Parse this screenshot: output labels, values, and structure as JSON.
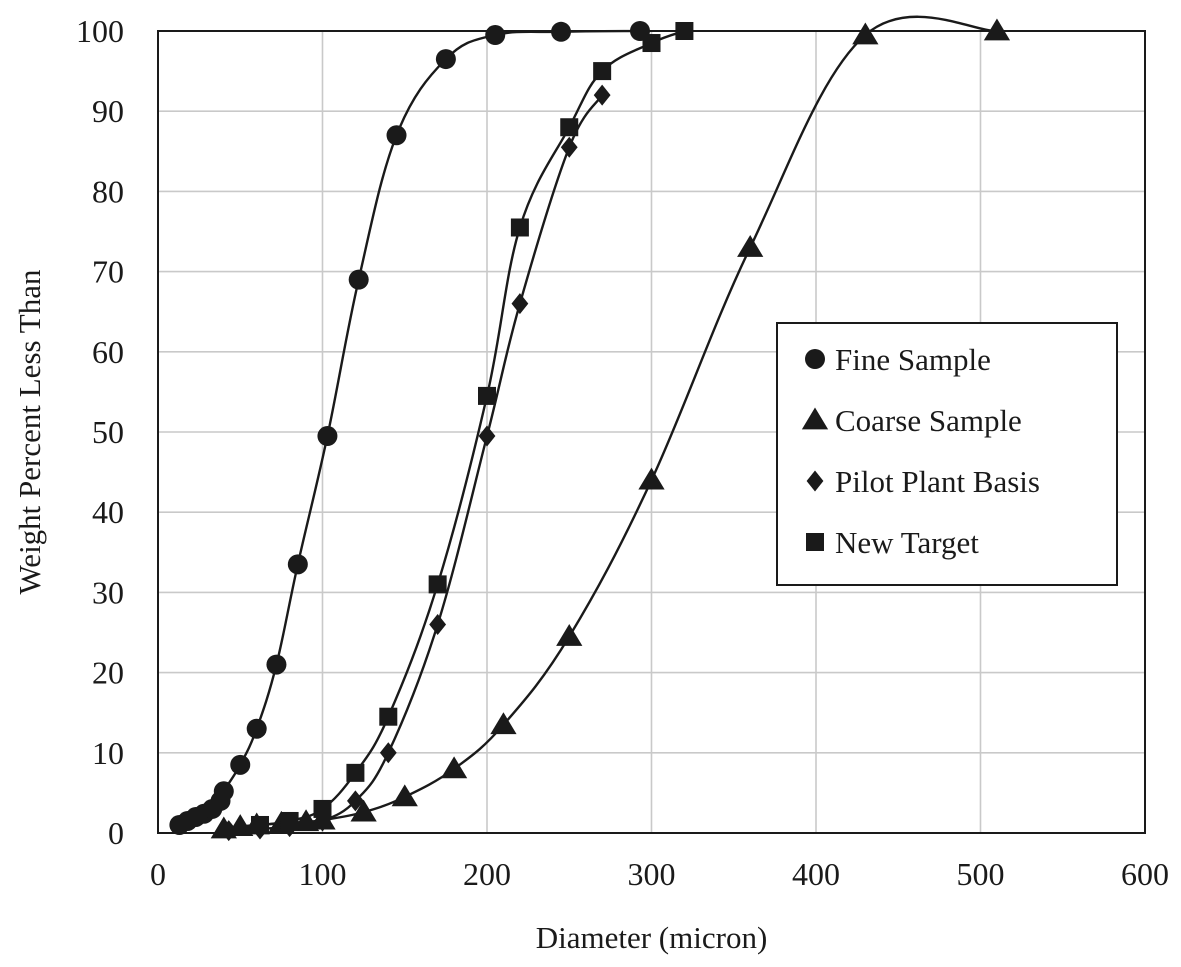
{
  "chart_data": {
    "type": "scatter",
    "title": "",
    "xlabel": "Diameter  (micron)",
    "ylabel": "Weight  Percent  Less  Than",
    "xlim": [
      0,
      600
    ],
    "ylim": [
      0,
      100
    ],
    "x_ticks": [
      0,
      100,
      200,
      300,
      400,
      500,
      600
    ],
    "y_ticks": [
      0,
      10,
      20,
      30,
      40,
      50,
      60,
      70,
      80,
      90,
      100
    ],
    "x_tick_labels": [
      "0",
      "100",
      "200",
      "300",
      "400",
      "500",
      "600"
    ],
    "y_tick_labels": [
      "0",
      "10",
      "20",
      "30",
      "40",
      "50",
      "60",
      "70",
      "80",
      "90",
      "100"
    ],
    "grid": true,
    "legend_position": "right",
    "series": [
      {
        "name": "Fine Sample",
        "marker": "circle",
        "x": [
          13,
          18,
          23,
          28,
          33,
          38,
          40,
          50,
          60,
          72,
          85,
          103,
          122,
          145,
          175,
          205,
          245,
          293
        ],
        "y": [
          1.0,
          1.5,
          2.0,
          2.4,
          3.0,
          4.0,
          5.2,
          8.5,
          13,
          21,
          33.5,
          49.5,
          69,
          87,
          96.5,
          99.5,
          99.9,
          100
        ]
      },
      {
        "name": "Coarse Sample",
        "marker": "triangle",
        "x": [
          40,
          50,
          60,
          75,
          90,
          100,
          125,
          150,
          180,
          210,
          250,
          300,
          360,
          430,
          510
        ],
        "y": [
          0.5,
          0.8,
          1.0,
          1.2,
          1.4,
          1.6,
          2.6,
          4.5,
          8.0,
          13.5,
          24.5,
          44,
          73,
          99.5,
          100
        ]
      },
      {
        "name": "Pilot Plant Basis",
        "marker": "diamond",
        "x": [
          43,
          62,
          80,
          100,
          120,
          140,
          170,
          200,
          220,
          250,
          270
        ],
        "y": [
          0.3,
          0.5,
          0.8,
          1.5,
          4.0,
          10,
          26,
          49.5,
          66,
          85.5,
          92
        ]
      },
      {
        "name": "New Target",
        "marker": "square",
        "x": [
          62,
          80,
          100,
          120,
          140,
          170,
          200,
          220,
          250,
          270,
          300,
          320
        ],
        "y": [
          1.0,
          1.5,
          3.0,
          7.5,
          14.5,
          31,
          54.5,
          75.5,
          88,
          95,
          98.5,
          100
        ]
      }
    ]
  }
}
